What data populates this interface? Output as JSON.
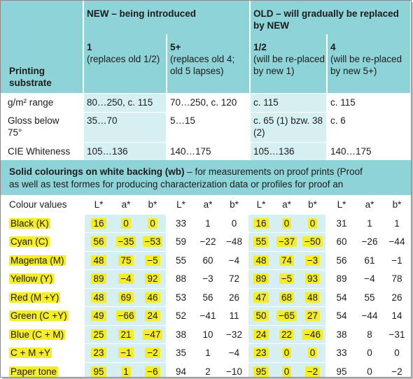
{
  "top": {
    "printing_substrate": "Printing substrate",
    "new_header": "NEW – being introduced",
    "old_header": "OLD – will gradually be replaced by NEW",
    "columns": [
      {
        "name": "1",
        "desc": "(replaces old 1/2)"
      },
      {
        "name": "5+",
        "desc": "(replaces old 4; old 5 lapses)"
      },
      {
        "name": "1/2",
        "desc": "(will be re-placed by new 1)"
      },
      {
        "name": "4",
        "desc": "(will be re-placed by new 5+)"
      }
    ],
    "rows": [
      {
        "label": "g/m² range",
        "values": [
          "80…250, c. 115",
          "70…250, c. 120",
          "c. 115",
          "c. 115"
        ]
      },
      {
        "label": "Gloss below 75°",
        "values": [
          "35…70",
          "5…15",
          "c. 65 (1) bzw. 38 (2)",
          "c. 6"
        ]
      },
      {
        "label": "CIE Whiteness",
        "values": [
          "105…136",
          "140…175",
          "105…136",
          "140…175"
        ]
      }
    ]
  },
  "solid": {
    "title": "Solid colourings on white backing (wb)",
    "line1_rest": " – for measurements on proof prints (Proof",
    "line2": "as well as test formes for producing characterization data or profiles for proof an"
  },
  "lower": {
    "header_label": "Colour values",
    "headers": [
      "L*",
      "a*",
      "b*",
      "L*",
      "a*",
      "b*",
      "L*",
      "a*",
      "b*",
      "L*",
      "a*",
      "b*"
    ],
    "rows": [
      {
        "label": "Black (K)",
        "values": [
          "16",
          "0",
          "0",
          "33",
          "1",
          "0",
          "16",
          "0",
          "0",
          "31",
          "1",
          "1"
        ]
      },
      {
        "label": "Cyan (C)",
        "values": [
          "56",
          "−35",
          "−53",
          "59",
          "−22",
          "−48",
          "55",
          "−37",
          "−50",
          "60",
          "−26",
          "−44"
        ]
      },
      {
        "label": "Magenta (M)",
        "values": [
          "48",
          "75",
          "−5",
          "55",
          "60",
          "−4",
          "48",
          "74",
          "−3",
          "56",
          "61",
          "−1"
        ]
      },
      {
        "label": "Yellow (Y)",
        "values": [
          "89",
          "−4",
          "92",
          "88",
          "−3",
          "72",
          "89",
          "−5",
          "93",
          "89",
          "−4",
          "78"
        ]
      },
      {
        "label": "Red (M +Y)",
        "values": [
          "48",
          "69",
          "46",
          "53",
          "56",
          "26",
          "47",
          "68",
          "48",
          "54",
          "55",
          "26"
        ]
      },
      {
        "label": "Green (C +Y)",
        "values": [
          "49",
          "−66",
          "24",
          "52",
          "−41",
          "11",
          "50",
          "−65",
          "27",
          "54",
          "−44",
          "14"
        ]
      },
      {
        "label": "Blue (C + M)",
        "values": [
          "25",
          "21",
          "−47",
          "38",
          "10",
          "−32",
          "24",
          "22",
          "−46",
          "38",
          "8",
          "−31"
        ]
      },
      {
        "label": "C + M +Y",
        "values": [
          "23",
          "−1",
          "−2",
          "35",
          "1",
          "−4",
          "23",
          "0",
          "0",
          "33",
          "0",
          "0"
        ]
      },
      {
        "label": "Paper tone",
        "values": [
          "95",
          "1",
          "−6",
          "94",
          "2",
          "−10",
          "95",
          "0",
          "−2",
          "95",
          "0",
          "−2"
        ]
      }
    ]
  },
  "colors": {
    "teal_header": "#8dd3d7",
    "light_teal": "#d6eff0",
    "highlight_yellow": "#f5ec2a"
  }
}
